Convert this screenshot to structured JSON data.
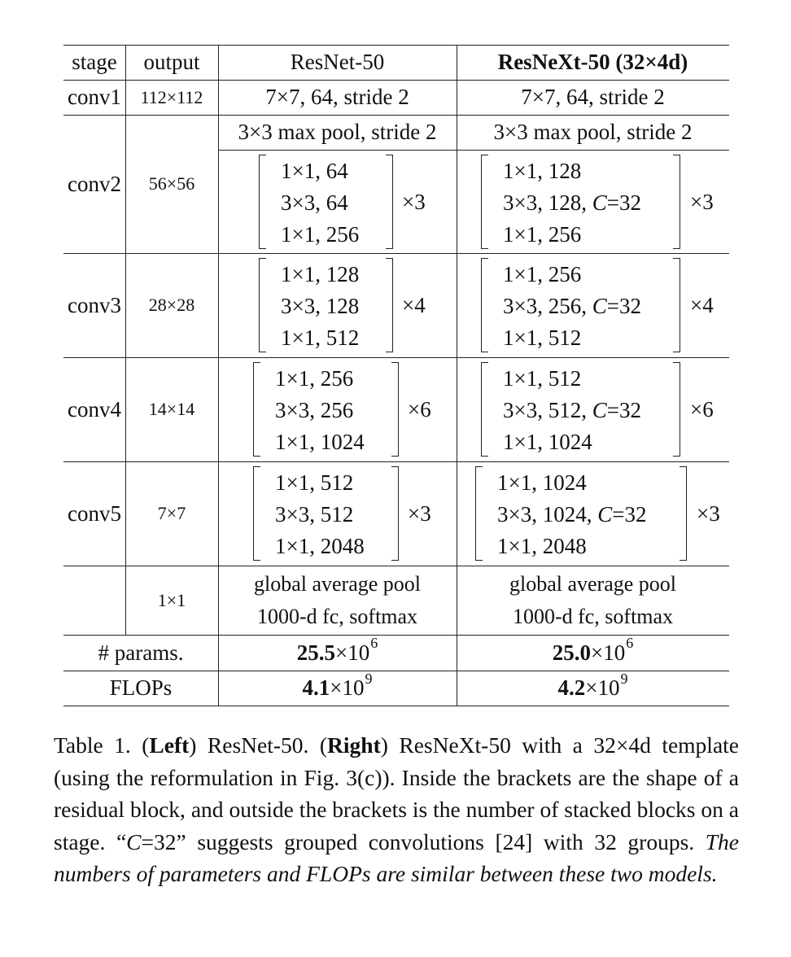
{
  "table": {
    "header": {
      "stage": "stage",
      "output": "output",
      "resnet": "ResNet-50",
      "resnext": "ResNeXt-50 (32×4d)"
    },
    "conv1": {
      "stage": "conv1",
      "output": "112×112",
      "resnet": "7×7, 64, stride 2",
      "resnext": "7×7, 64, stride 2"
    },
    "maxpool": {
      "resnet": "3×3 max pool, stride 2",
      "resnext": "3×3 max pool, stride 2"
    },
    "conv2": {
      "stage": "conv2",
      "output": "56×56",
      "resnet": {
        "lines": [
          "1×1, 64",
          "3×3, 64",
          "1×1, 256"
        ],
        "mult": "×3"
      },
      "resnext": {
        "lines": [
          "1×1, 128",
          "3×3, 128, C=32",
          "1×1, 256"
        ],
        "mult": "×3"
      }
    },
    "conv3": {
      "stage": "conv3",
      "output": "28×28",
      "resnet": {
        "lines": [
          "1×1, 128",
          "3×3, 128",
          "1×1, 512"
        ],
        "mult": "×4"
      },
      "resnext": {
        "lines": [
          "1×1, 256",
          "3×3, 256, C=32",
          "1×1, 512"
        ],
        "mult": "×4"
      }
    },
    "conv4": {
      "stage": "conv4",
      "output": "14×14",
      "resnet": {
        "lines": [
          "1×1, 256",
          "3×3, 256",
          "1×1, 1024"
        ],
        "mult": "×6"
      },
      "resnext": {
        "lines": [
          "1×1, 512",
          "3×3, 512, C=32",
          "1×1, 1024"
        ],
        "mult": "×6"
      }
    },
    "conv5": {
      "stage": "conv5",
      "output": "7×7",
      "resnet": {
        "lines": [
          "1×1, 512",
          "3×3, 512",
          "1×1, 2048"
        ],
        "mult": "×3"
      },
      "resnext": {
        "lines": [
          "1×1, 1024",
          "3×3, 1024, C=32",
          "1×1, 2048"
        ],
        "mult": "×3"
      }
    },
    "final": {
      "output": "1×1",
      "resnet": [
        "global average pool",
        "1000-d fc, softmax"
      ],
      "resnext": [
        "global average pool",
        "1000-d fc, softmax"
      ]
    },
    "params": {
      "label": "# params.",
      "resnet": {
        "mantissa": "25.5",
        "base": "×10",
        "exp": "6"
      },
      "resnext": {
        "mantissa": "25.0",
        "base": "×10",
        "exp": "6"
      }
    },
    "flops": {
      "label": "FLOPs",
      "resnet": {
        "mantissa": "4.1",
        "base": "×10",
        "exp": "9"
      },
      "resnext": {
        "mantissa": "4.2",
        "base": "×10",
        "exp": "9"
      }
    }
  },
  "caption": {
    "prefix": "Table 1. (",
    "left": "Left",
    "mid1": ") ResNet-50.  (",
    "right": "Right",
    "mid2": ") ResNeXt-50 with a 32×4d template (using the reformulation in Fig. 3(c)). Inside the brackets are the shape of a residual block, and outside the brackets is the number of stacked blocks on a stage. “",
    "c": "C",
    "mid3": "=32” suggests grouped convolutions [24] with 32 groups. ",
    "italic": "The numbers of parameters and FLOPs are similar between these two models."
  }
}
